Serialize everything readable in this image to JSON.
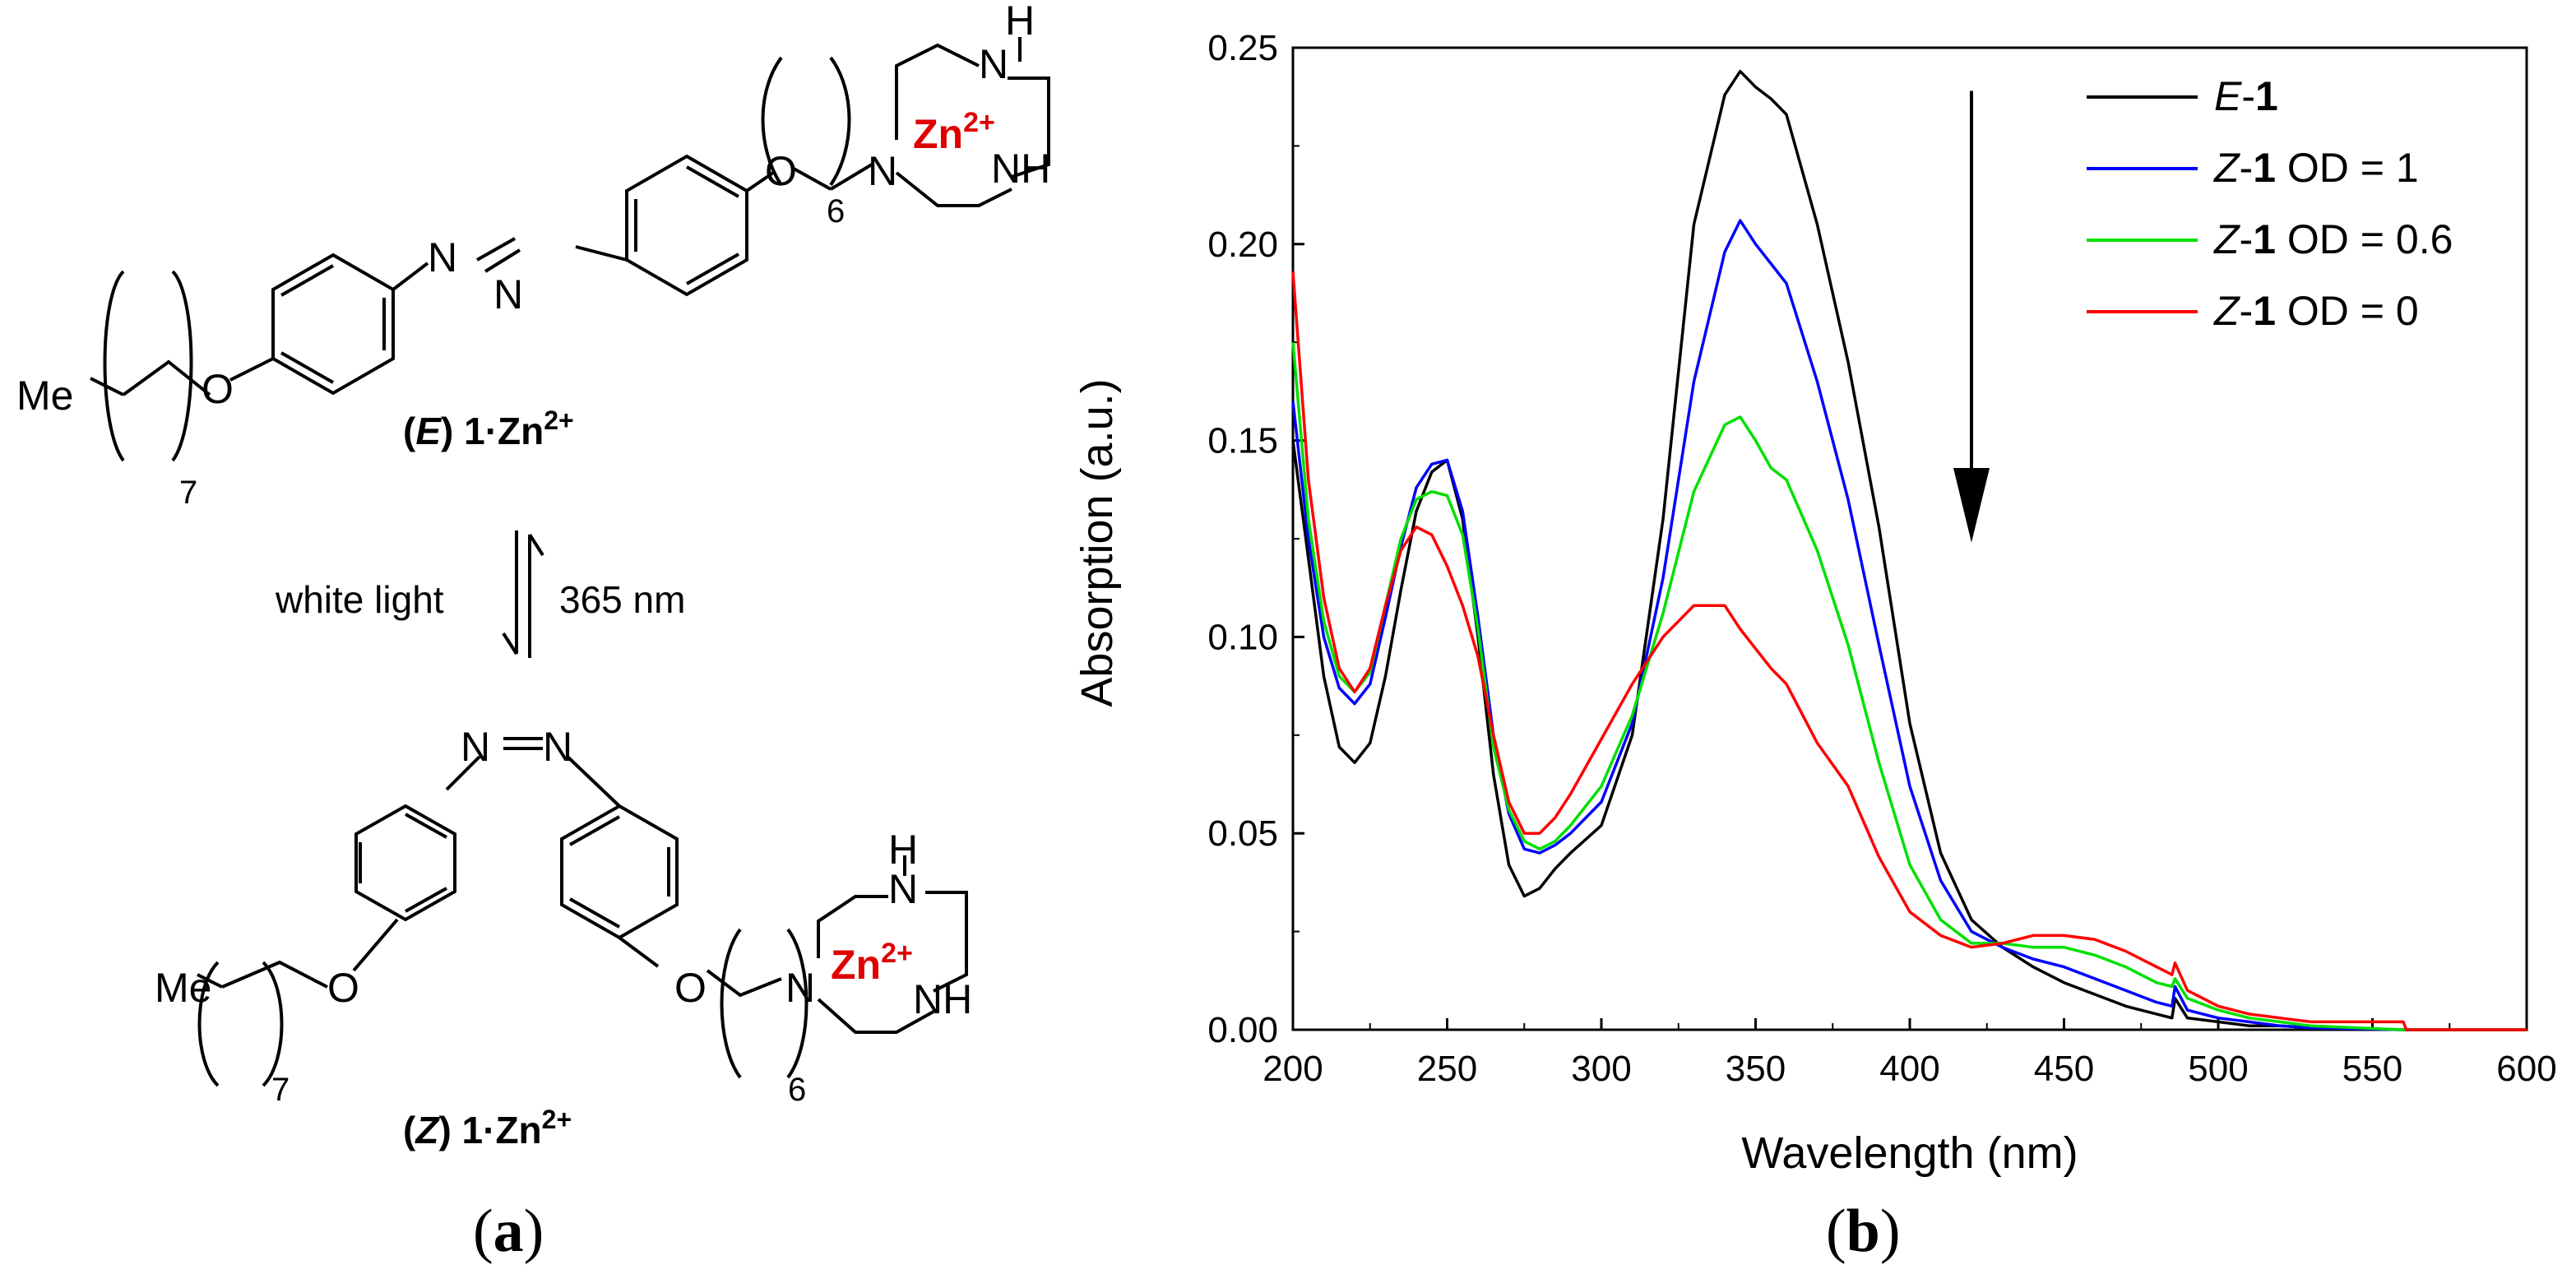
{
  "panel_a": {
    "label": "(a)",
    "label_letter": "a",
    "labels": {
      "me": "Me",
      "o": "O",
      "n": "N",
      "nh": "NH",
      "h": "H",
      "zn": "Zn",
      "zn_charge": "2+",
      "sub7": "7",
      "sub6": "6",
      "e_caption_open": "(",
      "e_caption_italic": "E",
      "e_caption_close": ") 1·Zn",
      "z_caption_italic": "Z",
      "light_left": "white light",
      "light_right": "365 nm"
    }
  },
  "panel_b": {
    "label": "(b)",
    "label_letter": "b"
  },
  "colors": {
    "e1": "#000000",
    "z1_od1": "#0000ff",
    "z1_od06": "#00e000",
    "z1_od0": "#ff0000",
    "zn_red": "#e00000"
  },
  "chart_data": {
    "type": "line",
    "xlabel": "Wavelength (nm)",
    "ylabel": "Absorption (a.u.)",
    "xlim": [
      200,
      600
    ],
    "ylim": [
      0.0,
      0.25
    ],
    "xticks": [
      "200",
      "250",
      "300",
      "350",
      "400",
      "450",
      "500",
      "550",
      "600"
    ],
    "yticks": [
      "0.00",
      "0.05",
      "0.10",
      "0.15",
      "0.20",
      "0.25"
    ],
    "legend_position": "top-right",
    "annotation": "downward arrow at ~420 nm indicating decreasing absorbance",
    "series": [
      {
        "name_italic": "E",
        "name_bold": "1",
        "name_rest": "",
        "color": "#000000",
        "x": [
          200,
          205,
          210,
          215,
          220,
          225,
          230,
          235,
          240,
          245,
          250,
          255,
          260,
          265,
          270,
          275,
          280,
          285,
          290,
          300,
          310,
          320,
          330,
          340,
          345,
          350,
          355,
          360,
          370,
          380,
          390,
          400,
          410,
          420,
          430,
          440,
          450,
          460,
          470,
          480,
          485,
          486,
          490,
          500,
          510,
          520,
          530,
          560,
          600
        ],
        "y": [
          0.15,
          0.12,
          0.09,
          0.072,
          0.068,
          0.073,
          0.09,
          0.112,
          0.132,
          0.142,
          0.145,
          0.13,
          0.1,
          0.065,
          0.042,
          0.034,
          0.036,
          0.041,
          0.045,
          0.052,
          0.075,
          0.13,
          0.205,
          0.238,
          0.244,
          0.24,
          0.237,
          0.233,
          0.205,
          0.17,
          0.128,
          0.078,
          0.045,
          0.028,
          0.021,
          0.016,
          0.012,
          0.009,
          0.006,
          0.004,
          0.003,
          0.008,
          0.003,
          0.002,
          0.001,
          0.001,
          0.0005,
          0.0,
          0.0
        ]
      },
      {
        "name_italic": "Z",
        "name_bold": "1",
        "name_rest": " OD = 1",
        "color": "#0000ff",
        "x": [
          200,
          205,
          210,
          215,
          220,
          225,
          230,
          235,
          240,
          245,
          250,
          255,
          260,
          265,
          270,
          275,
          280,
          285,
          290,
          300,
          310,
          320,
          330,
          340,
          345,
          350,
          355,
          360,
          370,
          380,
          390,
          400,
          410,
          420,
          430,
          440,
          450,
          460,
          470,
          480,
          485,
          486,
          490,
          500,
          510,
          520,
          530,
          560,
          600
        ],
        "y": [
          0.16,
          0.125,
          0.1,
          0.087,
          0.083,
          0.088,
          0.105,
          0.123,
          0.138,
          0.144,
          0.145,
          0.132,
          0.105,
          0.075,
          0.055,
          0.046,
          0.045,
          0.047,
          0.05,
          0.058,
          0.078,
          0.115,
          0.165,
          0.198,
          0.206,
          0.2,
          0.195,
          0.19,
          0.165,
          0.135,
          0.098,
          0.062,
          0.038,
          0.025,
          0.021,
          0.018,
          0.016,
          0.013,
          0.01,
          0.007,
          0.006,
          0.011,
          0.005,
          0.003,
          0.002,
          0.001,
          0.0005,
          0.0,
          0.0
        ]
      },
      {
        "name_italic": "Z",
        "name_bold": "1",
        "name_rest": " OD = 0.6",
        "color": "#00e000",
        "x": [
          200,
          205,
          210,
          215,
          220,
          225,
          230,
          235,
          240,
          245,
          250,
          255,
          260,
          265,
          270,
          275,
          280,
          285,
          290,
          300,
          310,
          320,
          330,
          340,
          345,
          350,
          355,
          360,
          370,
          380,
          390,
          400,
          410,
          420,
          430,
          440,
          450,
          460,
          470,
          480,
          485,
          486,
          490,
          500,
          510,
          520,
          530,
          560,
          600
        ],
        "y": [
          0.175,
          0.13,
          0.104,
          0.09,
          0.086,
          0.091,
          0.108,
          0.125,
          0.135,
          0.137,
          0.136,
          0.126,
          0.102,
          0.072,
          0.056,
          0.048,
          0.046,
          0.048,
          0.052,
          0.062,
          0.08,
          0.106,
          0.137,
          0.154,
          0.156,
          0.15,
          0.143,
          0.14,
          0.122,
          0.098,
          0.068,
          0.042,
          0.028,
          0.022,
          0.022,
          0.021,
          0.021,
          0.019,
          0.016,
          0.012,
          0.011,
          0.013,
          0.008,
          0.005,
          0.003,
          0.002,
          0.001,
          0.0,
          0.0
        ]
      },
      {
        "name_italic": "Z",
        "name_bold": "1",
        "name_rest": " OD = 0",
        "color": "#ff0000",
        "x": [
          200,
          205,
          210,
          215,
          220,
          225,
          230,
          235,
          240,
          245,
          250,
          255,
          260,
          265,
          270,
          275,
          280,
          285,
          290,
          300,
          310,
          320,
          330,
          340,
          345,
          350,
          355,
          360,
          370,
          380,
          390,
          400,
          410,
          420,
          430,
          440,
          450,
          460,
          470,
          480,
          485,
          486,
          490,
          500,
          510,
          520,
          530,
          545,
          560,
          561,
          600
        ],
        "y": [
          0.193,
          0.14,
          0.11,
          0.092,
          0.086,
          0.092,
          0.108,
          0.122,
          0.128,
          0.126,
          0.118,
          0.108,
          0.095,
          0.075,
          0.058,
          0.05,
          0.05,
          0.054,
          0.06,
          0.074,
          0.088,
          0.1,
          0.108,
          0.108,
          0.102,
          0.097,
          0.092,
          0.088,
          0.073,
          0.062,
          0.044,
          0.03,
          0.024,
          0.021,
          0.022,
          0.024,
          0.024,
          0.023,
          0.02,
          0.016,
          0.014,
          0.017,
          0.01,
          0.006,
          0.004,
          0.003,
          0.002,
          0.002,
          0.002,
          0.0,
          0.0
        ]
      }
    ]
  }
}
